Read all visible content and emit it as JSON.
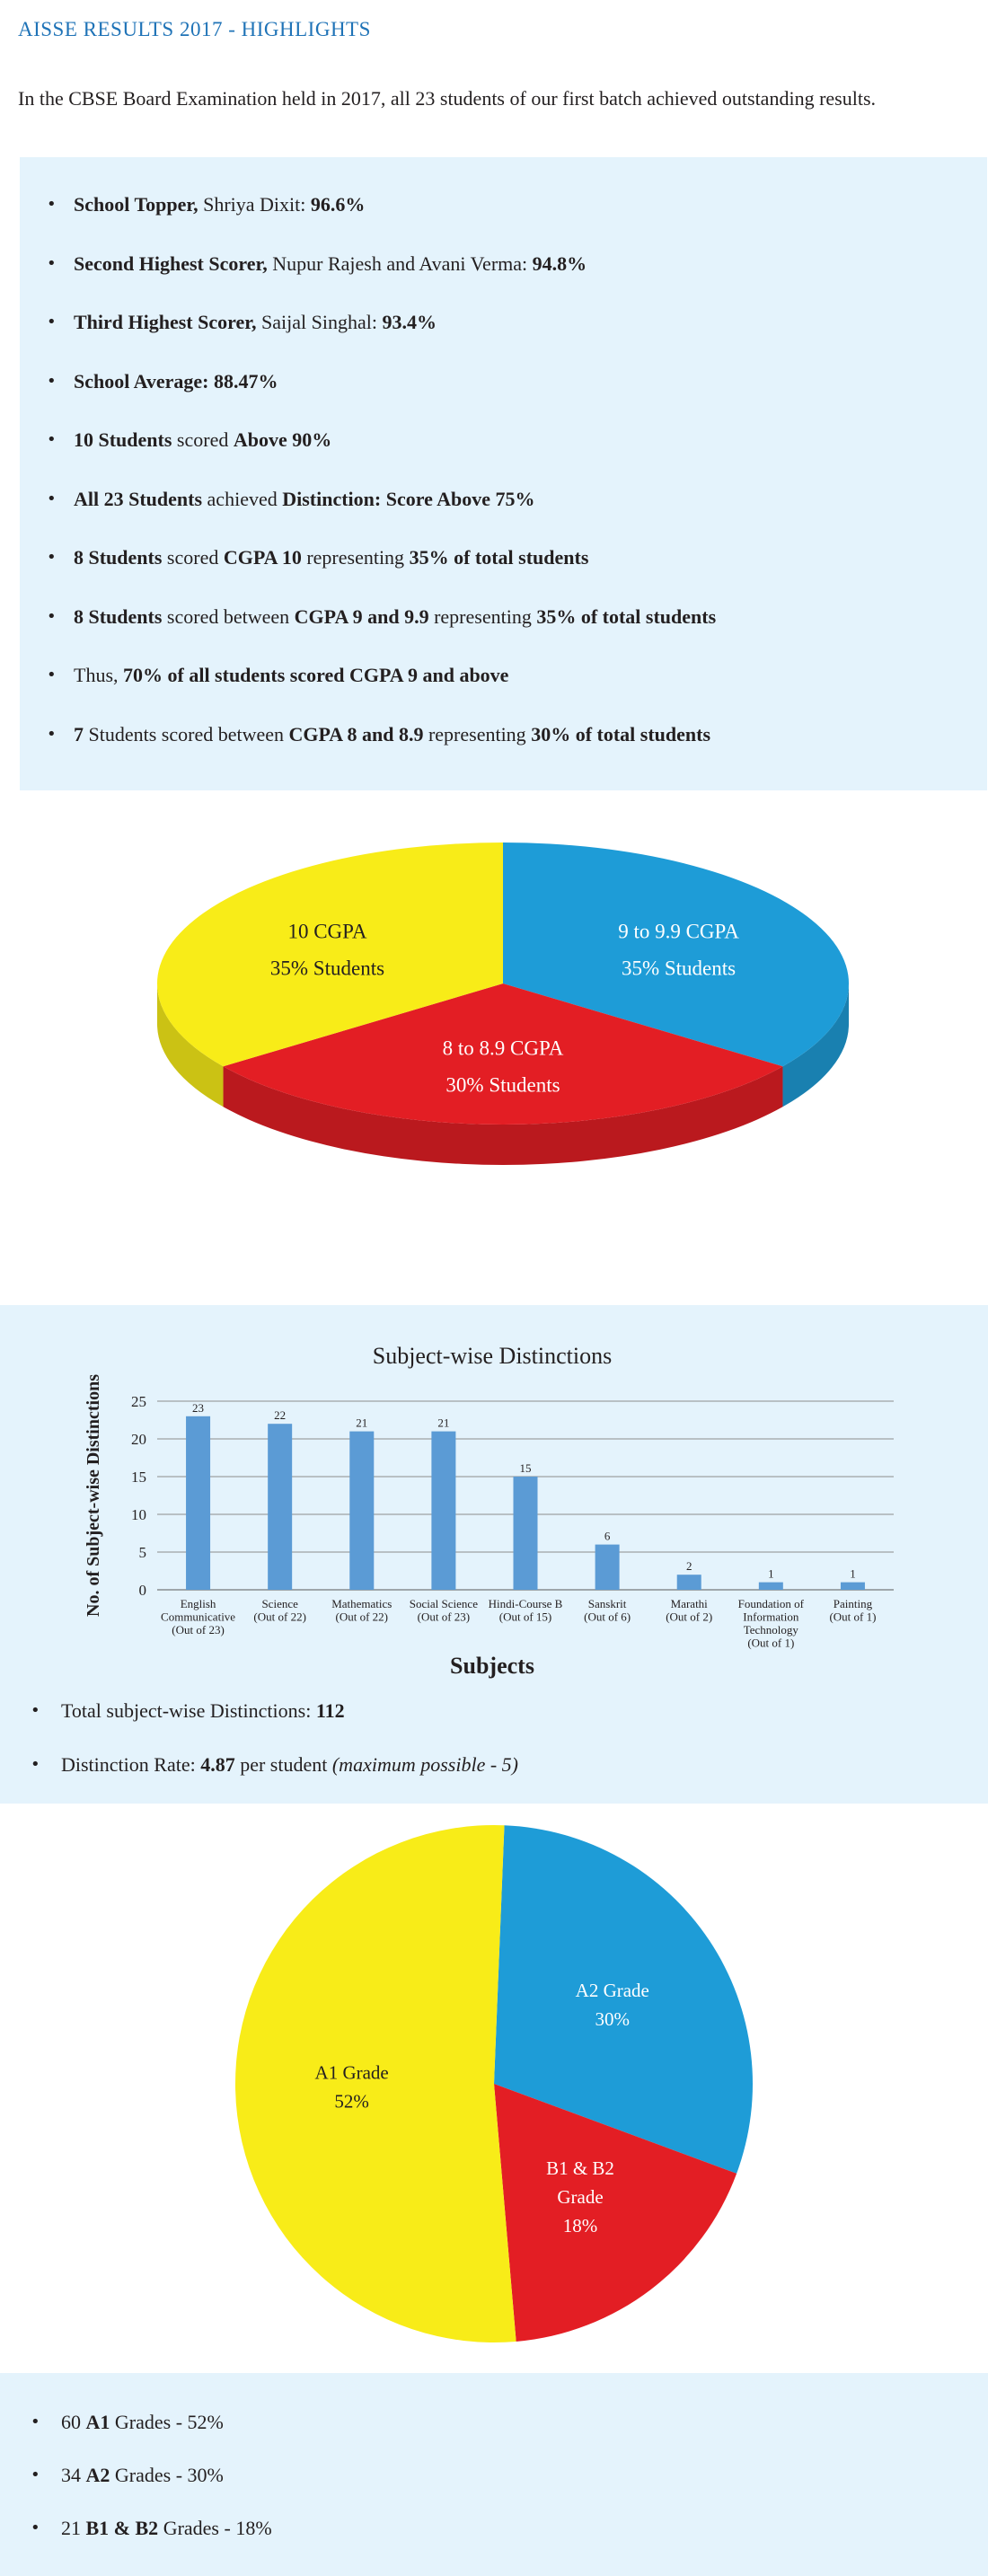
{
  "header": {
    "title": "AISSE RESULTS 2017 - HIGHLIGHTS",
    "intro": "In the CBSE Board Examination held in 2017, all 23 students of our first batch achieved outstanding results."
  },
  "highlights": [
    {
      "segments": [
        {
          "t": "School Topper,",
          "b": true
        },
        {
          "t": " Shriya Dixit: "
        },
        {
          "t": "96.6%",
          "b": true
        }
      ]
    },
    {
      "segments": [
        {
          "t": "Second Highest Scorer,",
          "b": true
        },
        {
          "t": " Nupur Rajesh and Avani Verma: "
        },
        {
          "t": "94.8%",
          "b": true
        }
      ]
    },
    {
      "segments": [
        {
          "t": "Third Highest Scorer,",
          "b": true
        },
        {
          "t": " Saijal Singhal: "
        },
        {
          "t": "93.4%",
          "b": true
        }
      ]
    },
    {
      "segments": [
        {
          "t": "School Average: 88.47%",
          "b": true
        }
      ]
    },
    {
      "segments": [
        {
          "t": "10 Students",
          "b": true
        },
        {
          "t": " scored "
        },
        {
          "t": "Above 90%",
          "b": true
        }
      ]
    },
    {
      "segments": [
        {
          "t": "All 23 Students",
          "b": true
        },
        {
          "t": " achieved "
        },
        {
          "t": "Distinction: Score Above 75%",
          "b": true
        }
      ]
    },
    {
      "segments": [
        {
          "t": "8 Students",
          "b": true
        },
        {
          "t": " scored "
        },
        {
          "t": "CGPA 10",
          "b": true
        },
        {
          "t": " representing "
        },
        {
          "t": "35% of total students",
          "b": true
        }
      ]
    },
    {
      "segments": [
        {
          "t": "8 Students",
          "b": true
        },
        {
          "t": " scored between "
        },
        {
          "t": "CGPA 9 and 9.9",
          "b": true
        },
        {
          "t": " representing "
        },
        {
          "t": "35% of total students",
          "b": true
        }
      ]
    },
    {
      "segments": [
        {
          "t": "Thus, "
        },
        {
          "t": "70% of all students scored CGPA 9 and above",
          "b": true
        }
      ]
    },
    {
      "segments": [
        {
          "t": "7",
          "b": true
        },
        {
          "t": " Students scored between "
        },
        {
          "t": "CGPA 8 and 8.9",
          "b": true
        },
        {
          "t": " representing "
        },
        {
          "t": "30% of total students",
          "b": true
        }
      ]
    }
  ],
  "chart_data": [
    {
      "type": "pie",
      "style": "3d",
      "slices": [
        {
          "label": "9 to 9.9 CGPA",
          "sublabel": "35% Students",
          "value": 35,
          "color": "#1e9cd7",
          "text_color": "#ffffff"
        },
        {
          "label": "8 to 8.9 CGPA",
          "sublabel": "30% Students",
          "value": 30,
          "color": "#e31e24",
          "text_color": "#ffffff"
        },
        {
          "label": "10 CGPA",
          "sublabel": "35% Students",
          "value": 35,
          "color": "#f8ec18",
          "text_color": "#231f20"
        }
      ]
    },
    {
      "type": "bar",
      "title": "Subject-wise Distinctions",
      "xlabel": "Subjects",
      "ylabel": "No. of Subject-wise Distinctions",
      "ylim": [
        0,
        25
      ],
      "yticks": [
        0,
        5,
        10,
        15,
        20,
        25
      ],
      "grid": true,
      "bar_color": "#5b9bd5",
      "categories": [
        [
          "English",
          "Communicative",
          "(Out of 23)"
        ],
        [
          "Science",
          "(Out of 22)"
        ],
        [
          "Mathematics",
          "(Out of 22)"
        ],
        [
          "Social Science",
          "(Out of 23)"
        ],
        [
          "Hindi-Course B",
          "(Out of 15)"
        ],
        [
          "Sanskrit",
          "(Out of 6)"
        ],
        [
          "Marathi",
          "(Out of 2)"
        ],
        [
          "Foundation of",
          "Information",
          "Technology",
          "(Out of 1)"
        ],
        [
          "Painting",
          "(Out of 1)"
        ]
      ],
      "values": [
        23,
        22,
        21,
        21,
        15,
        6,
        2,
        1,
        1
      ]
    },
    {
      "type": "pie",
      "slices": [
        {
          "label": [
            "A2 Grade"
          ],
          "sublabel": "30%",
          "value": 30,
          "color": "#1e9cd7",
          "text_color": "#ffffff"
        },
        {
          "label": [
            "B1 & B2",
            "Grade"
          ],
          "sublabel": "18%",
          "value": 18,
          "color": "#e31e24",
          "text_color": "#ffffff"
        },
        {
          "label": [
            "A1 Grade"
          ],
          "sublabel": "52%",
          "value": 52,
          "color": "#f8ec18",
          "text_color": "#231f20"
        }
      ]
    }
  ],
  "distinction_stats": [
    {
      "segments": [
        {
          "t": "Total subject-wise Distinctions: "
        },
        {
          "t": "112",
          "b": true
        }
      ]
    },
    {
      "segments": [
        {
          "t": "Distinction Rate: "
        },
        {
          "t": "4.87",
          "b": true
        },
        {
          "t": " per student "
        },
        {
          "t": "(maximum possible - 5)",
          "i": true
        }
      ]
    }
  ],
  "grade_stats": [
    {
      "segments": [
        {
          "t": "60 "
        },
        {
          "t": "A1",
          "b": true
        },
        {
          "t": " Grades - 52%"
        }
      ]
    },
    {
      "segments": [
        {
          "t": "34 "
        },
        {
          "t": "A2",
          "b": true
        },
        {
          "t": " Grades - 30%"
        }
      ]
    },
    {
      "segments": [
        {
          "t": "21 "
        },
        {
          "t": "B1 & B2",
          "b": true
        },
        {
          "t": " Grades - 18%"
        }
      ]
    }
  ]
}
